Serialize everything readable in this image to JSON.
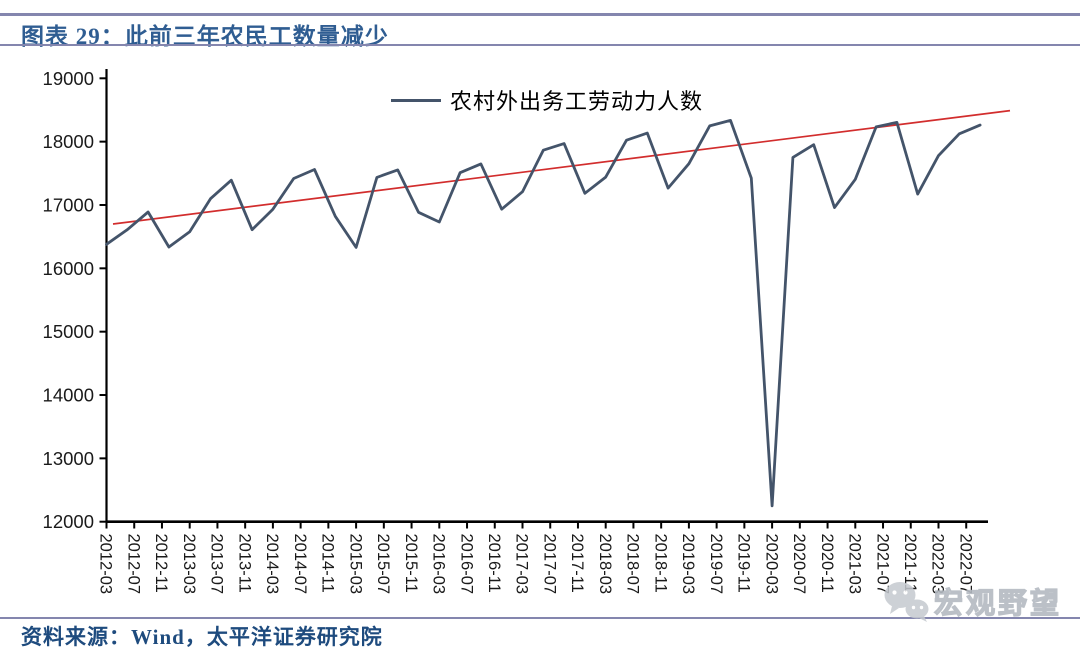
{
  "header": {
    "title": "图表 29：此前三年农民工数量减少"
  },
  "legend": {
    "label": "农村外出务工劳动力人数"
  },
  "footer": {
    "source": "资料来源：Wind，太平洋证券研究院"
  },
  "watermark": {
    "text": "宏观野望",
    "icon": "wechat-icon"
  },
  "colors": {
    "series": "#44546A",
    "trend": "#D22D2D",
    "axis": "#000000",
    "tick_label": "#1a1a1a",
    "title": "#2F5D92",
    "rule": "#8486AE",
    "source": "#1E4B7E",
    "watermark": "#C9CCD1"
  },
  "chart_data": {
    "type": "line",
    "title": "农村外出务工劳动力人数",
    "xlabel": "",
    "ylabel": "",
    "ylim": [
      12000,
      19000
    ],
    "y_ticks": [
      12000,
      13000,
      14000,
      15000,
      16000,
      17000,
      18000,
      19000
    ],
    "grid": false,
    "legend_position": "top-center",
    "x": [
      "2012-03",
      "2012-06",
      "2012-09",
      "2012-12",
      "2013-03",
      "2013-06",
      "2013-09",
      "2013-12",
      "2014-03",
      "2014-06",
      "2014-09",
      "2014-12",
      "2015-03",
      "2015-06",
      "2015-09",
      "2015-12",
      "2016-03",
      "2016-06",
      "2016-09",
      "2016-12",
      "2017-03",
      "2017-06",
      "2017-09",
      "2017-12",
      "2018-03",
      "2018-06",
      "2018-09",
      "2018-12",
      "2019-03",
      "2019-06",
      "2019-09",
      "2019-12",
      "2020-03",
      "2020-06",
      "2020-09",
      "2020-12",
      "2021-03",
      "2021-06",
      "2021-09",
      "2021-12",
      "2022-03",
      "2022-06",
      "2022-09"
    ],
    "x_tick_labels": [
      "2012-03",
      "2012-07",
      "2012-11",
      "2013-03",
      "2013-07",
      "2013-11",
      "2014-03",
      "2014-07",
      "2014-11",
      "2015-03",
      "2015-07",
      "2015-11",
      "2016-03",
      "2016-07",
      "2016-11",
      "2017-03",
      "2017-07",
      "2017-11",
      "2018-03",
      "2018-07",
      "2018-11",
      "2019-03",
      "2019-07",
      "2019-11",
      "2020-03",
      "2020-07",
      "2020-11",
      "2021-03",
      "2021-07",
      "2021-11",
      "2022-03",
      "2022-07"
    ],
    "series": [
      {
        "name": "农村外出务工劳动力人数",
        "values": [
          16380,
          16610,
          16890,
          16336,
          16576,
          17100,
          17392,
          16610,
          16933,
          17418,
          17561,
          16821,
          16331,
          17436,
          17554,
          16884,
          16732,
          17509,
          17649,
          16934,
          17210,
          17865,
          17969,
          17185,
          17441,
          18022,
          18135,
          17266,
          17651,
          18248,
          18336,
          17425,
          12251,
          17752,
          17952,
          16959,
          17405,
          18233,
          18303,
          17172,
          17780,
          18124,
          18261
        ]
      },
      {
        "name": "trendline",
        "type": "linear_trend",
        "start_value": 16700,
        "end_value": 18490
      }
    ]
  }
}
